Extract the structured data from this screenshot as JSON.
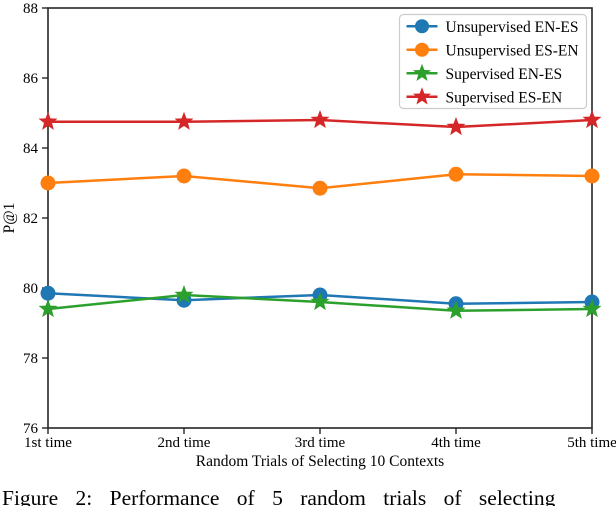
{
  "figure": {
    "caption": "Figure 2: Performance of 5 random trials of selecting"
  },
  "chart_data": {
    "type": "line",
    "title": "",
    "xlabel": "Random Trials of Selecting 10 Contexts",
    "ylabel": "P@1",
    "categories": [
      "1st time",
      "2nd time",
      "3rd time",
      "4th time",
      "5th time"
    ],
    "ylim": [
      76,
      88
    ],
    "yticks": [
      76,
      78,
      80,
      82,
      84,
      86,
      88
    ],
    "grid": false,
    "legend_position": "upper right",
    "series": [
      {
        "name": "Unsupervised EN-ES",
        "color": "#1f77b4",
        "marker": "circle",
        "values": [
          79.85,
          79.65,
          79.8,
          79.55,
          79.6
        ]
      },
      {
        "name": "Unsupervised ES-EN",
        "color": "#ff7f0e",
        "marker": "circle",
        "values": [
          83.0,
          83.2,
          82.85,
          83.25,
          83.2
        ]
      },
      {
        "name": "Supervised EN-ES",
        "color": "#2ca02c",
        "marker": "star",
        "values": [
          79.4,
          79.8,
          79.6,
          79.35,
          79.4
        ]
      },
      {
        "name": "Supervised ES-EN",
        "color": "#d62728",
        "marker": "star",
        "values": [
          84.75,
          84.75,
          84.8,
          84.6,
          84.8
        ]
      }
    ],
    "axis_color": "#262626"
  }
}
